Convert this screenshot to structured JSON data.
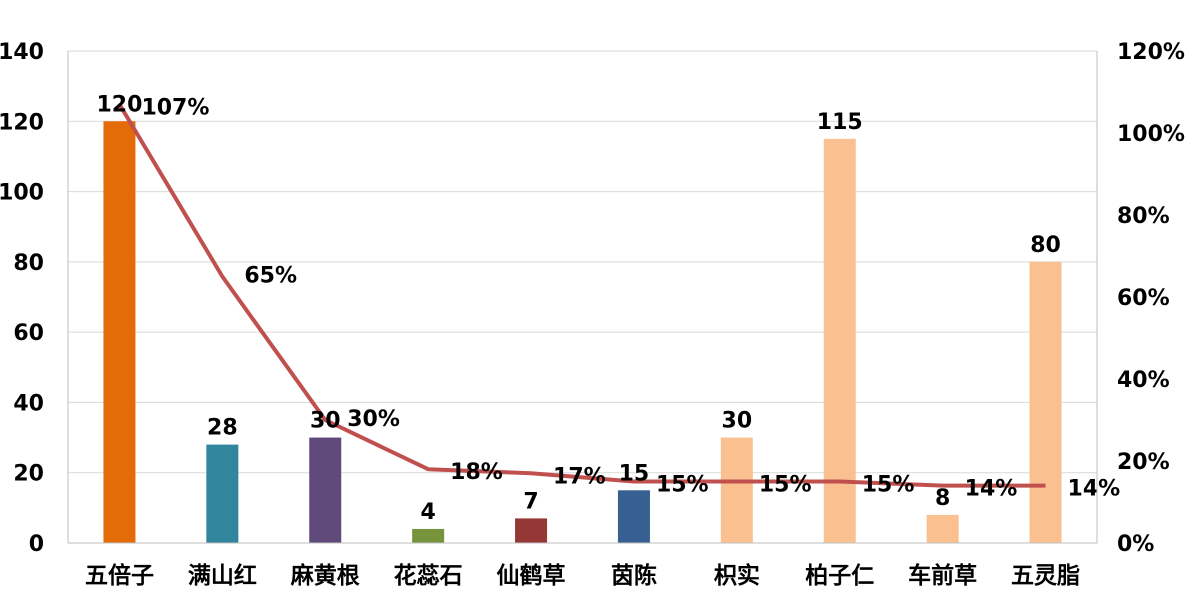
{
  "chart_data": {
    "type": "bar",
    "categories": [
      "五倍子",
      "满山红",
      "麻黄根",
      "花蕊石",
      "仙鹤草",
      "茵陈",
      "枳实",
      "柏子仁",
      "车前草",
      "五灵脂"
    ],
    "series": [
      {
        "type": "bar",
        "axis": "left",
        "values": [
          120,
          28,
          30,
          4,
          7,
          15,
          30,
          115,
          8,
          80
        ],
        "value_labels": [
          "120",
          "28",
          "30",
          "4",
          "7",
          "15",
          "30",
          "115",
          "8",
          "80"
        ],
        "colors": [
          "#e36c09",
          "#31859c",
          "#604a7b",
          "#77933c",
          "#953735",
          "#376092",
          "#fac090",
          "#fac090",
          "#fac090",
          "#fac090"
        ]
      },
      {
        "type": "line",
        "axis": "right",
        "values": [
          107,
          65,
          30,
          18,
          17,
          15,
          15,
          15,
          14,
          14
        ],
        "value_labels": [
          "107%",
          "65%",
          "30%",
          "18%",
          "17%",
          "15%",
          "15%",
          "15%",
          "14%",
          "14%"
        ],
        "color": "#c0504d"
      }
    ],
    "ylim": [
      0,
      140
    ],
    "yticks": [
      "0",
      "20",
      "40",
      "60",
      "80",
      "100",
      "120",
      "140"
    ],
    "y2lim": [
      0,
      120
    ],
    "y2ticks": [
      "0%",
      "20%",
      "40%",
      "60%",
      "80%",
      "100%",
      "120%"
    ],
    "grid": true,
    "legend": "none",
    "title": "",
    "xlabel": "",
    "ylabel": ""
  }
}
